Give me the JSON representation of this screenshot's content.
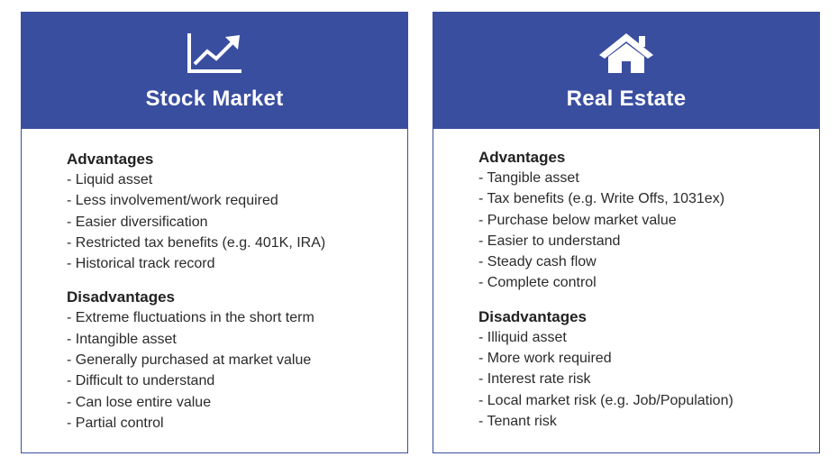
{
  "cards": [
    {
      "title": "Stock Market",
      "icon": "trending-up-chart-icon",
      "advantages_title": "Advantages",
      "advantages": [
        "- Liquid asset",
        "- Less involvement/work required",
        "- Easier diversification",
        "- Restricted tax benefits (e.g. 401K, IRA)",
        "- Historical track record"
      ],
      "disadvantages_title": "Disadvantages",
      "disadvantages": [
        "- Extreme fluctuations in the short term",
        "- Intangible asset",
        "- Generally purchased at market value",
        "- Difficult to understand",
        "- Can lose entire value",
        "- Partial control"
      ]
    },
    {
      "title": "Real Estate",
      "icon": "house-icon",
      "advantages_title": "Advantages",
      "advantages": [
        "- Tangible asset",
        "- Tax benefits (e.g. Write Offs, 1031ex)",
        "- Purchase below market value",
        "- Easier to understand",
        "- Steady cash flow",
        "- Complete control"
      ],
      "disadvantages_title": "Disadvantages",
      "disadvantages": [
        "- Illiquid asset",
        "- More work required",
        "- Interest rate risk",
        "- Local market risk (e.g. Job/Population)",
        "- Tenant risk"
      ]
    }
  ],
  "colors": {
    "header_bg": "#3a4ea0",
    "header_text": "#ffffff",
    "body_text": "#2b2b2b"
  }
}
